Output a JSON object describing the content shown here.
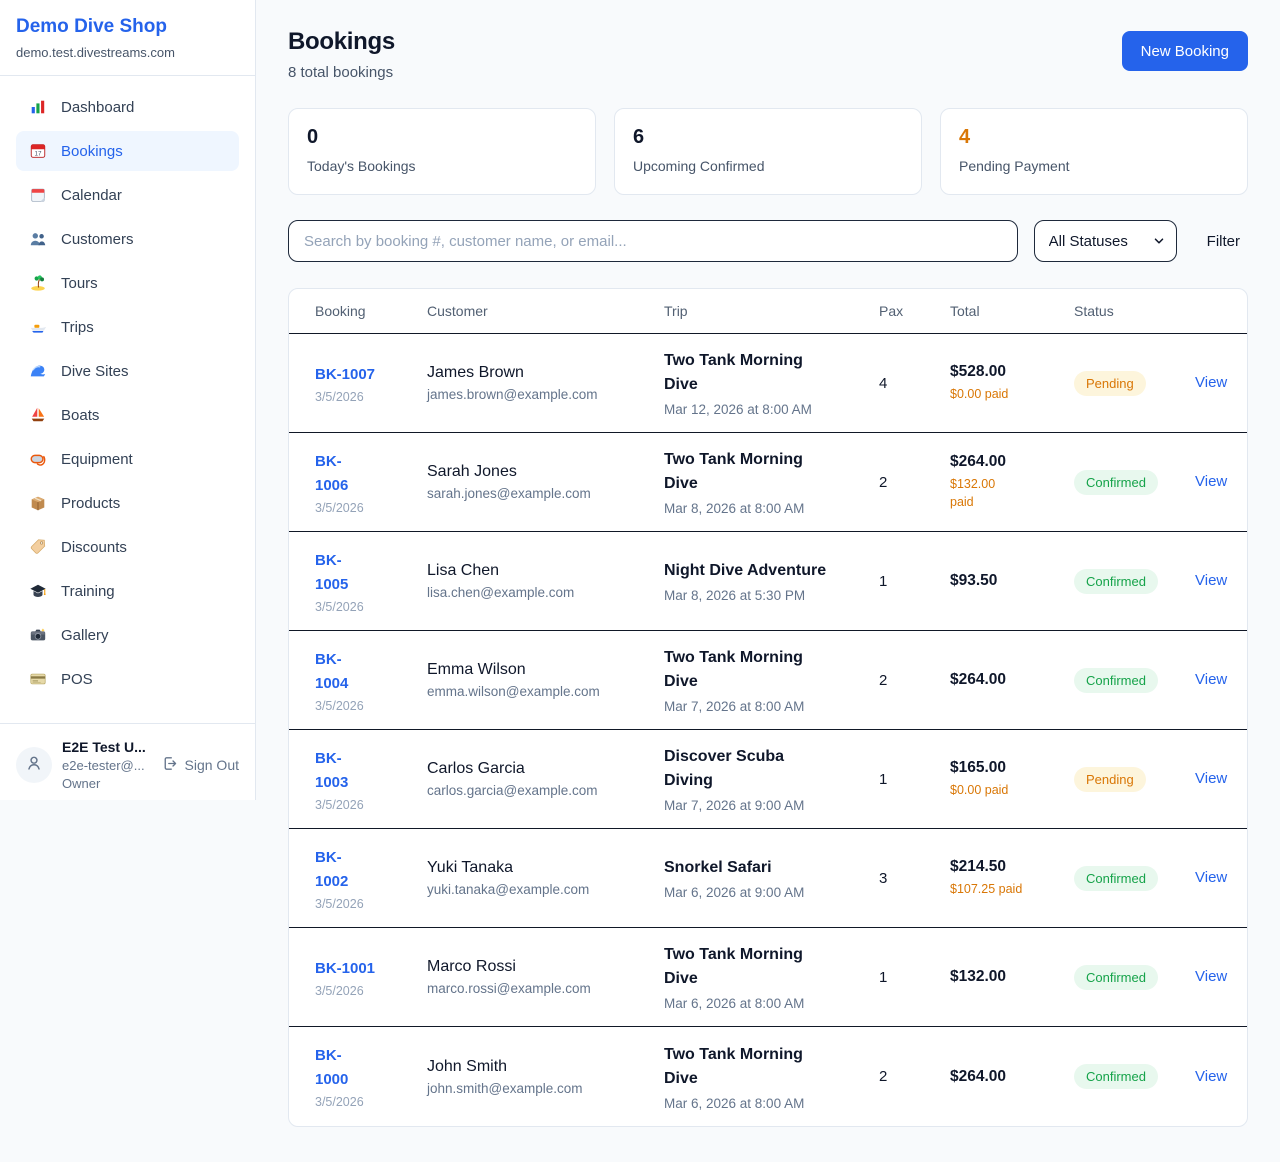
{
  "sidebar": {
    "shop_name": "Demo Dive Shop",
    "shop_domain": "demo.test.divestreams.com",
    "items": [
      {
        "icon": "bar-chart-icon",
        "label": "Dashboard",
        "active": false
      },
      {
        "icon": "calendar-17-icon",
        "label": "Bookings",
        "active": true
      },
      {
        "icon": "tear-calendar-icon",
        "label": "Calendar",
        "active": false
      },
      {
        "icon": "two-people-icon",
        "label": "Customers",
        "active": false
      },
      {
        "icon": "island-icon",
        "label": "Tours",
        "active": false
      },
      {
        "icon": "speedboat-icon",
        "label": "Trips",
        "active": false
      },
      {
        "icon": "wave-icon",
        "label": "Dive Sites",
        "active": false
      },
      {
        "icon": "sailboat-icon",
        "label": "Boats",
        "active": false
      },
      {
        "icon": "dive-mask-icon",
        "label": "Equipment",
        "active": false
      },
      {
        "icon": "package-icon",
        "label": "Products",
        "active": false
      },
      {
        "icon": "tag-icon",
        "label": "Discounts",
        "active": false
      },
      {
        "icon": "graduation-cap-icon",
        "label": "Training",
        "active": false
      },
      {
        "icon": "camera-icon",
        "label": "Gallery",
        "active": false
      },
      {
        "icon": "credit-card-icon",
        "label": "POS",
        "active": false
      }
    ],
    "user": {
      "name": "E2E Test U...",
      "email": "e2e-tester@...",
      "role": "Owner",
      "sign_out_label": "Sign Out"
    }
  },
  "header": {
    "title": "Bookings",
    "subtitle": "8 total bookings",
    "new_booking_label": "New Booking"
  },
  "stats": [
    {
      "value": "0",
      "label": "Today's Bookings",
      "value_color": "#0f172a"
    },
    {
      "value": "6",
      "label": "Upcoming Confirmed",
      "value_color": "#0f172a"
    },
    {
      "value": "4",
      "label": "Pending Payment",
      "value_color": "#d97706"
    }
  ],
  "filters": {
    "search_placeholder": "Search by booking #, customer name, or email...",
    "status_selected": "All Statuses",
    "filter_label": "Filter"
  },
  "table": {
    "columns": [
      "Booking",
      "Customer",
      "Trip",
      "Pax",
      "Total",
      "Status"
    ],
    "view_label": "View",
    "rows": [
      {
        "booking_lines": [
          "BK-1007"
        ],
        "date": "3/5/2026",
        "customer": "James Brown",
        "email": "james.brown@example.com",
        "trip_lines": [
          "Two Tank Morning",
          "Dive"
        ],
        "trip_datetime": "Mar 12, 2026 at 8:00 AM",
        "pax": "4",
        "total": "$528.00",
        "paid_lines": [
          "$0.00 paid"
        ],
        "status": "Pending"
      },
      {
        "booking_lines": [
          "BK-",
          "1006"
        ],
        "date": "3/5/2026",
        "customer": "Sarah Jones",
        "email": "sarah.jones@example.com",
        "trip_lines": [
          "Two Tank Morning",
          "Dive"
        ],
        "trip_datetime": "Mar 8, 2026 at 8:00 AM",
        "pax": "2",
        "total": "$264.00",
        "paid_lines": [
          "$132.00",
          "paid"
        ],
        "status": "Confirmed"
      },
      {
        "booking_lines": [
          "BK-",
          "1005"
        ],
        "date": "3/5/2026",
        "customer": "Lisa Chen",
        "email": "lisa.chen@example.com",
        "trip_lines": [
          "Night Dive Adventure"
        ],
        "trip_datetime": "Mar 8, 2026 at 5:30 PM",
        "pax": "1",
        "total": "$93.50",
        "paid_lines": [],
        "status": "Confirmed"
      },
      {
        "booking_lines": [
          "BK-",
          "1004"
        ],
        "date": "3/5/2026",
        "customer": "Emma Wilson",
        "email": "emma.wilson@example.com",
        "trip_lines": [
          "Two Tank Morning",
          "Dive"
        ],
        "trip_datetime": "Mar 7, 2026 at 8:00 AM",
        "pax": "2",
        "total": "$264.00",
        "paid_lines": [],
        "status": "Confirmed"
      },
      {
        "booking_lines": [
          "BK-",
          "1003"
        ],
        "date": "3/5/2026",
        "customer": "Carlos Garcia",
        "email": "carlos.garcia@example.com",
        "trip_lines": [
          "Discover Scuba",
          "Diving"
        ],
        "trip_datetime": "Mar 7, 2026 at 9:00 AM",
        "pax": "1",
        "total": "$165.00",
        "paid_lines": [
          "$0.00 paid"
        ],
        "status": "Pending"
      },
      {
        "booking_lines": [
          "BK-",
          "1002"
        ],
        "date": "3/5/2026",
        "customer": "Yuki Tanaka",
        "email": "yuki.tanaka@example.com",
        "trip_lines": [
          "Snorkel Safari"
        ],
        "trip_datetime": "Mar 6, 2026 at 9:00 AM",
        "pax": "3",
        "total": "$214.50",
        "paid_lines": [
          "$107.25 paid"
        ],
        "status": "Confirmed"
      },
      {
        "booking_lines": [
          "BK-1001"
        ],
        "date": "3/5/2026",
        "customer": "Marco Rossi",
        "email": "marco.rossi@example.com",
        "trip_lines": [
          "Two Tank Morning",
          "Dive"
        ],
        "trip_datetime": "Mar 6, 2026 at 8:00 AM",
        "pax": "1",
        "total": "$132.00",
        "paid_lines": [],
        "status": "Confirmed"
      },
      {
        "booking_lines": [
          "BK-",
          "1000"
        ],
        "date": "3/5/2026",
        "customer": "John Smith",
        "email": "john.smith@example.com",
        "trip_lines": [
          "Two Tank Morning",
          "Dive"
        ],
        "trip_datetime": "Mar 6, 2026 at 8:00 AM",
        "pax": "2",
        "total": "$264.00",
        "paid_lines": [],
        "status": "Confirmed"
      }
    ]
  },
  "colors": {
    "accent_blue": "#2563eb",
    "pending_orange": "#d97706",
    "confirmed_green": "#16a34a",
    "page_background": "#f8fafc",
    "row_divider": "#111827"
  }
}
